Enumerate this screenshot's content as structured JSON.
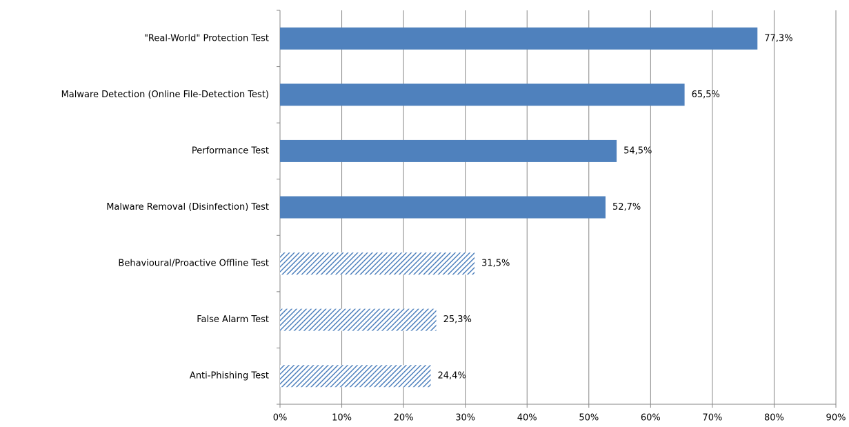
{
  "chart_data": {
    "type": "hbar",
    "categories": [
      "\"Real-World\" Protection Test",
      "Malware Detection (Online File-Detection Test)",
      "Performance Test",
      "Malware Removal (Disinfection) Test",
      "Behavioural/Proactive Offline Test",
      "False Alarm Test",
      "Anti-Phishing Test"
    ],
    "values": [
      77.3,
      65.5,
      54.5,
      52.7,
      31.5,
      25.3,
      24.4
    ],
    "value_labels": [
      "77,3%",
      "65,5%",
      "54,5%",
      "52,7%",
      "31,5%",
      "25,3%",
      "24,4%"
    ],
    "fill_styles": [
      "solid",
      "solid",
      "solid",
      "solid",
      "hatched",
      "hatched",
      "hatched"
    ],
    "color": "#4f81bd",
    "xlim": [
      0,
      90
    ],
    "xticks": [
      {
        "value": 0,
        "label": "0%"
      },
      {
        "value": 10,
        "label": "10%"
      },
      {
        "value": 20,
        "label": "20%"
      },
      {
        "value": 30,
        "label": "30%"
      },
      {
        "value": 40,
        "label": "40%"
      },
      {
        "value": 50,
        "label": "50%"
      },
      {
        "value": 60,
        "label": "60%"
      },
      {
        "value": 70,
        "label": "70%"
      },
      {
        "value": 80,
        "label": "80%"
      },
      {
        "value": 90,
        "label": "90%"
      }
    ],
    "grid": true
  }
}
